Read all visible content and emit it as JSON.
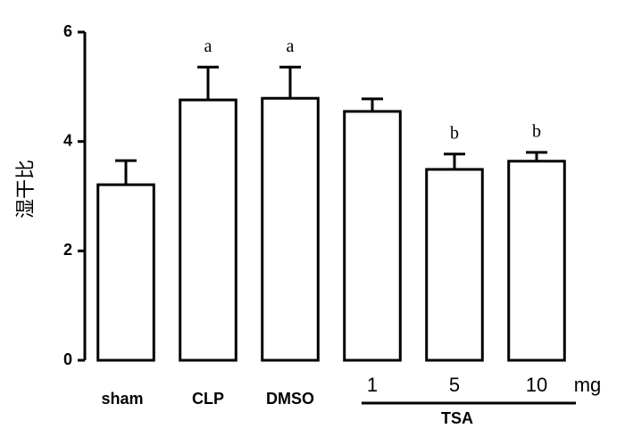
{
  "chart_data": {
    "type": "bar",
    "y_label": "湿干比",
    "categories": [
      "sham",
      "CLP",
      "DMSO",
      "1",
      "5",
      "10"
    ],
    "unit": "mg",
    "group_label": "TSA",
    "values": [
      3.21,
      4.76,
      4.79,
      4.55,
      3.49,
      3.64
    ],
    "errors": [
      0.44,
      0.6,
      0.57,
      0.23,
      0.28,
      0.16
    ],
    "annotations": [
      null,
      "a",
      "a",
      null,
      "b",
      "b"
    ],
    "color": "#ffffff",
    "edge_color": "#000000",
    "ylim": [
      0,
      6
    ],
    "yticks": [
      0,
      2,
      4,
      6
    ]
  }
}
